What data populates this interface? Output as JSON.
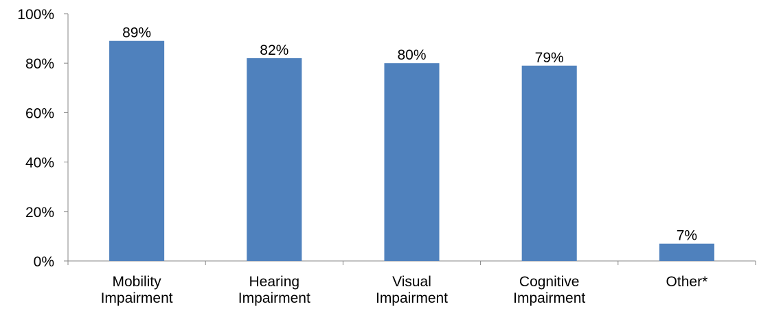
{
  "chart_data": {
    "type": "bar",
    "categories": [
      [
        "Mobility",
        "Impairment"
      ],
      [
        "Hearing",
        "Impairment"
      ],
      [
        "Visual",
        "Impairment"
      ],
      [
        "Cognitive",
        "Impairment"
      ],
      [
        "Other*"
      ]
    ],
    "values": [
      89,
      82,
      80,
      79,
      7
    ],
    "data_labels": [
      "89%",
      "82%",
      "80%",
      "79%",
      "7%"
    ],
    "title": "",
    "xlabel": "",
    "ylabel": "",
    "ylim": [
      0,
      100
    ],
    "yticks": [
      0,
      20,
      40,
      60,
      80,
      100
    ],
    "ytick_labels": [
      "0%",
      "20%",
      "40%",
      "60%",
      "80%",
      "100%"
    ],
    "grid": false,
    "bar_color": "#4F81BD",
    "axis_color": "#868686"
  }
}
